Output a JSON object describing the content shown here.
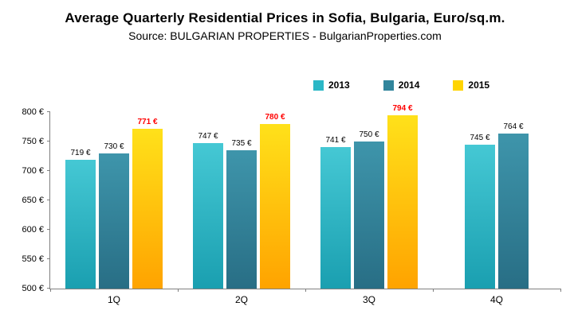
{
  "title": "Average Quarterly Residential Prices in Sofia, Bulgaria, Euro/sq.m.",
  "subtitle": "Source: BULGARIAN PROPERTIES - BulgarianProperties.com",
  "chart_data": {
    "type": "bar",
    "title": "Average Quarterly Residential Prices in Sofia, Bulgaria, Euro/sq.m.",
    "subtitle": "Source: BULGARIAN PROPERTIES - BulgarianProperties.com",
    "categories": [
      "1Q",
      "2Q",
      "3Q",
      "4Q"
    ],
    "series": [
      {
        "name": "2013",
        "values": [
          719,
          747,
          741,
          745
        ],
        "color": "#2BB7C6",
        "color_top": "#45C8D4",
        "color_bottom": "#1A9FB0",
        "label_color": "#000000",
        "label_bold": false
      },
      {
        "name": "2014",
        "values": [
          730,
          735,
          750,
          764
        ],
        "color": "#31859C",
        "color_top": "#3E95AB",
        "color_bottom": "#286E85",
        "label_color": "#000000",
        "label_bold": false
      },
      {
        "name": "2015",
        "values": [
          771,
          780,
          794,
          null
        ],
        "color": "#FFD400",
        "color_top": "#FFE11A",
        "color_bottom": "#FFA300",
        "label_color": "#FF0000",
        "label_bold": true
      }
    ],
    "ylim": [
      500,
      800
    ],
    "ytick_step": 50,
    "value_suffix": " €",
    "legend_position": "top-right",
    "grid": false
  }
}
